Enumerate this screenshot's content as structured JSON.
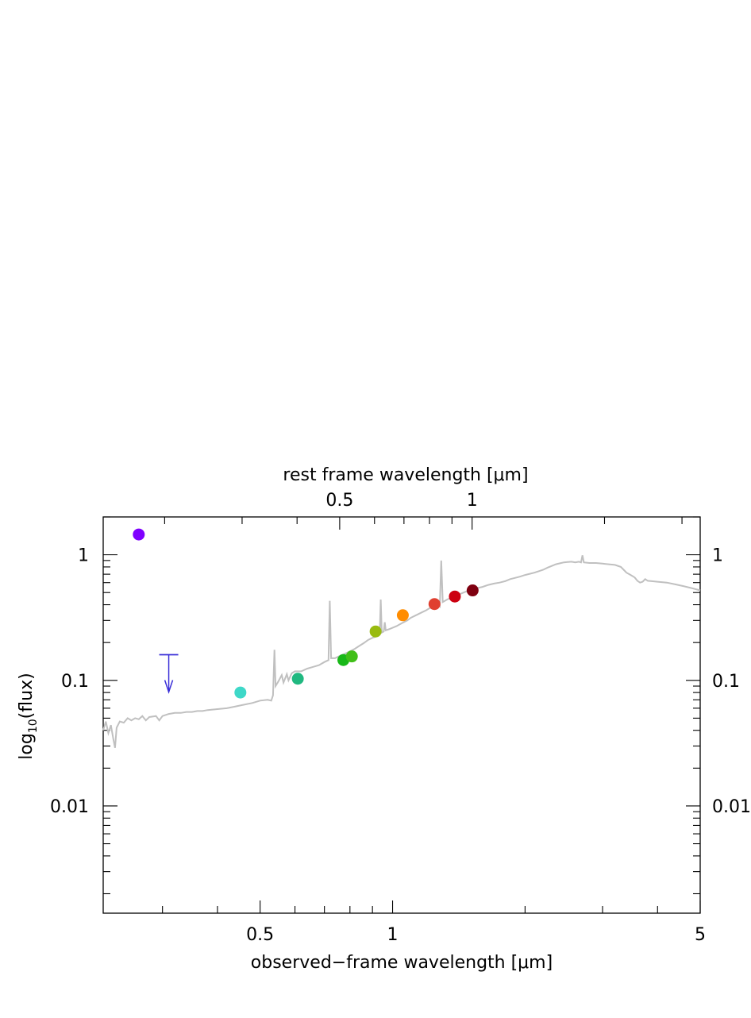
{
  "chart_data": {
    "type": "scatter",
    "xlabel": "observed−frame wavelength [μm]",
    "top_xlabel": "rest frame wavelength [μm]",
    "ylabel": "log10(flux)",
    "x_scale": "log",
    "y_scale": "log",
    "xlim": [
      0.22,
      5.0
    ],
    "ylim": [
      0.0014,
      2.0
    ],
    "top_xlim": [
      0.145,
      3.3
    ],
    "x_tick_labels": [
      {
        "value": 0.5,
        "label": "0.5"
      },
      {
        "value": 1,
        "label": "1"
      },
      {
        "value": 5,
        "label": "5"
      }
    ],
    "top_tick_labels": [
      {
        "value": 0.5,
        "label": "0.5"
      },
      {
        "value": 1,
        "label": "1"
      }
    ],
    "y_tick_labels": [
      {
        "value": 1,
        "label": "1"
      },
      {
        "value": 0.1,
        "label": "0.1"
      },
      {
        "value": 0.01,
        "label": "0.01"
      }
    ],
    "photometry": [
      {
        "x": 0.265,
        "y": 1.45,
        "color": "#7f00ff"
      },
      {
        "x": 0.451,
        "y": 0.08,
        "color": "#3ed8c8"
      },
      {
        "x": 0.609,
        "y": 0.103,
        "color": "#20b880"
      },
      {
        "x": 0.773,
        "y": 0.145,
        "color": "#18b818"
      },
      {
        "x": 0.808,
        "y": 0.155,
        "color": "#40bf18"
      },
      {
        "x": 0.915,
        "y": 0.245,
        "color": "#99bb10"
      },
      {
        "x": 1.055,
        "y": 0.33,
        "color": "#ff8c00"
      },
      {
        "x": 1.245,
        "y": 0.405,
        "color": "#e04030"
      },
      {
        "x": 1.385,
        "y": 0.465,
        "color": "#cc0010"
      },
      {
        "x": 1.52,
        "y": 0.52,
        "color": "#7f0010"
      }
    ],
    "upper_limits": [
      {
        "x": 0.31,
        "y": 0.16,
        "color": "#3a2fd8"
      }
    ],
    "model_spectrum": {
      "color": "#c0c0c0",
      "points": [
        [
          0.22,
          0.04
        ],
        [
          0.223,
          0.047
        ],
        [
          0.226,
          0.038
        ],
        [
          0.229,
          0.044
        ],
        [
          0.232,
          0.034
        ],
        [
          0.234,
          0.029
        ],
        [
          0.236,
          0.042
        ],
        [
          0.24,
          0.047
        ],
        [
          0.245,
          0.046
        ],
        [
          0.25,
          0.05
        ],
        [
          0.255,
          0.048
        ],
        [
          0.26,
          0.05
        ],
        [
          0.265,
          0.049
        ],
        [
          0.27,
          0.052
        ],
        [
          0.275,
          0.048
        ],
        [
          0.28,
          0.051
        ],
        [
          0.29,
          0.052
        ],
        [
          0.295,
          0.048
        ],
        [
          0.3,
          0.052
        ],
        [
          0.31,
          0.054
        ],
        [
          0.32,
          0.055
        ],
        [
          0.33,
          0.055
        ],
        [
          0.34,
          0.056
        ],
        [
          0.35,
          0.056
        ],
        [
          0.36,
          0.057
        ],
        [
          0.37,
          0.057
        ],
        [
          0.38,
          0.058
        ],
        [
          0.4,
          0.059
        ],
        [
          0.42,
          0.06
        ],
        [
          0.44,
          0.062
        ],
        [
          0.46,
          0.064
        ],
        [
          0.48,
          0.066
        ],
        [
          0.5,
          0.069
        ],
        [
          0.52,
          0.07
        ],
        [
          0.53,
          0.069
        ],
        [
          0.535,
          0.076
        ],
        [
          0.539,
          0.175
        ],
        [
          0.542,
          0.09
        ],
        [
          0.55,
          0.098
        ],
        [
          0.56,
          0.11
        ],
        [
          0.565,
          0.096
        ],
        [
          0.575,
          0.112
        ],
        [
          0.58,
          0.1
        ],
        [
          0.59,
          0.114
        ],
        [
          0.6,
          0.118
        ],
        [
          0.62,
          0.118
        ],
        [
          0.64,
          0.124
        ],
        [
          0.66,
          0.128
        ],
        [
          0.68,
          0.132
        ],
        [
          0.7,
          0.14
        ],
        [
          0.715,
          0.145
        ],
        [
          0.72,
          0.43
        ],
        [
          0.725,
          0.15
        ],
        [
          0.74,
          0.15
        ],
        [
          0.76,
          0.157
        ],
        [
          0.78,
          0.163
        ],
        [
          0.8,
          0.17
        ],
        [
          0.82,
          0.178
        ],
        [
          0.84,
          0.188
        ],
        [
          0.86,
          0.198
        ],
        [
          0.88,
          0.21
        ],
        [
          0.9,
          0.218
        ],
        [
          0.92,
          0.224
        ],
        [
          0.935,
          0.232
        ],
        [
          0.94,
          0.44
        ],
        [
          0.945,
          0.24
        ],
        [
          0.955,
          0.245
        ],
        [
          0.96,
          0.29
        ],
        [
          0.965,
          0.25
        ],
        [
          0.98,
          0.255
        ],
        [
          1.0,
          0.262
        ],
        [
          1.02,
          0.27
        ],
        [
          1.05,
          0.285
        ],
        [
          1.08,
          0.3
        ],
        [
          1.1,
          0.315
        ],
        [
          1.13,
          0.33
        ],
        [
          1.16,
          0.345
        ],
        [
          1.19,
          0.36
        ],
        [
          1.22,
          0.38
        ],
        [
          1.25,
          0.395
        ],
        [
          1.27,
          0.405
        ],
        [
          1.28,
          0.39
        ],
        [
          1.29,
          0.9
        ],
        [
          1.3,
          0.42
        ],
        [
          1.33,
          0.44
        ],
        [
          1.37,
          0.46
        ],
        [
          1.4,
          0.475
        ],
        [
          1.45,
          0.5
        ],
        [
          1.5,
          0.525
        ],
        [
          1.55,
          0.54
        ],
        [
          1.6,
          0.555
        ],
        [
          1.65,
          0.575
        ],
        [
          1.7,
          0.59
        ],
        [
          1.75,
          0.6
        ],
        [
          1.8,
          0.615
        ],
        [
          1.85,
          0.64
        ],
        [
          1.9,
          0.655
        ],
        [
          1.95,
          0.67
        ],
        [
          2.0,
          0.69
        ],
        [
          2.05,
          0.705
        ],
        [
          2.1,
          0.72
        ],
        [
          2.15,
          0.74
        ],
        [
          2.2,
          0.76
        ],
        [
          2.25,
          0.79
        ],
        [
          2.3,
          0.815
        ],
        [
          2.35,
          0.84
        ],
        [
          2.4,
          0.855
        ],
        [
          2.45,
          0.87
        ],
        [
          2.5,
          0.875
        ],
        [
          2.55,
          0.88
        ],
        [
          2.6,
          0.87
        ],
        [
          2.65,
          0.88
        ],
        [
          2.68,
          0.87
        ],
        [
          2.7,
          0.99
        ],
        [
          2.72,
          0.87
        ],
        [
          2.8,
          0.86
        ],
        [
          2.9,
          0.86
        ],
        [
          3.0,
          0.85
        ],
        [
          3.1,
          0.84
        ],
        [
          3.2,
          0.83
        ],
        [
          3.3,
          0.8
        ],
        [
          3.35,
          0.76
        ],
        [
          3.4,
          0.72
        ],
        [
          3.45,
          0.7
        ],
        [
          3.5,
          0.68
        ],
        [
          3.55,
          0.66
        ],
        [
          3.6,
          0.62
        ],
        [
          3.65,
          0.6
        ],
        [
          3.7,
          0.61
        ],
        [
          3.75,
          0.64
        ],
        [
          3.8,
          0.62
        ],
        [
          3.9,
          0.615
        ],
        [
          4.0,
          0.61
        ],
        [
          4.2,
          0.6
        ],
        [
          4.4,
          0.58
        ],
        [
          4.6,
          0.56
        ],
        [
          4.8,
          0.54
        ],
        [
          5.0,
          0.52
        ]
      ]
    }
  }
}
